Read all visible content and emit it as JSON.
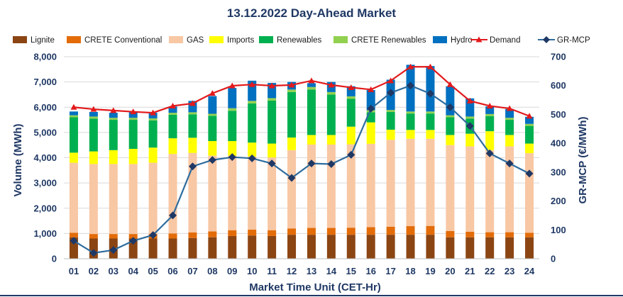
{
  "chart_data": {
    "type": "bar",
    "title": "13.12.2022  Day-Ahead Market",
    "xlabel": "Market Time Unit (CET-Hr)",
    "ylabel": "Volume (MWh)",
    "y2label": "GR-MCP (€/MWh)",
    "ylim": [
      0,
      8000
    ],
    "y2lim": [
      0,
      700
    ],
    "yticks": [
      "0",
      "1,000",
      "2,000",
      "3,000",
      "4,000",
      "5,000",
      "6,000",
      "7,000",
      "8,000"
    ],
    "y2ticks": [
      "0",
      "100",
      "200",
      "300",
      "400",
      "500",
      "600",
      "700"
    ],
    "categories": [
      "01",
      "02",
      "03",
      "04",
      "05",
      "06",
      "07",
      "08",
      "09",
      "10",
      "11",
      "12",
      "13",
      "14",
      "15",
      "16",
      "17",
      "18",
      "19",
      "20",
      "21",
      "22",
      "23",
      "24"
    ],
    "series": [
      {
        "name": "Lignite",
        "kind": "bar",
        "color": "#8b4513",
        "values": [
          850,
          800,
          800,
          800,
          800,
          800,
          820,
          850,
          900,
          920,
          900,
          950,
          950,
          950,
          950,
          950,
          950,
          950,
          950,
          850,
          850,
          850,
          850,
          850
        ]
      },
      {
        "name": "CRETE Conventional",
        "kind": "bar",
        "color": "#e36c09",
        "values": [
          180,
          180,
          180,
          180,
          180,
          200,
          220,
          230,
          230,
          230,
          230,
          250,
          270,
          270,
          280,
          300,
          320,
          340,
          350,
          250,
          220,
          200,
          200,
          180
        ]
      },
      {
        "name": "GAS",
        "kind": "bar",
        "color": "#f8c7a4",
        "values": [
          2770,
          2770,
          2770,
          2770,
          2820,
          3150,
          3150,
          3000,
          2950,
          2900,
          2880,
          3100,
          3300,
          3300,
          3300,
          3300,
          3440,
          3460,
          3450,
          3400,
          3380,
          3250,
          3400,
          3150
        ]
      },
      {
        "name": "Imports",
        "kind": "bar",
        "color": "#ffff00",
        "values": [
          400,
          500,
          550,
          600,
          600,
          620,
          600,
          580,
          580,
          550,
          550,
          500,
          380,
          380,
          700,
          850,
          400,
          350,
          350,
          400,
          500,
          750,
          450,
          380
        ]
      },
      {
        "name": "Renewables",
        "kind": "bar",
        "color": "#00b050",
        "values": [
          1400,
          1300,
          1200,
          1150,
          1080,
          930,
          930,
          1000,
          1200,
          1550,
          1700,
          1800,
          1800,
          1600,
          1100,
          400,
          700,
          650,
          650,
          700,
          600,
          600,
          600,
          700
        ]
      },
      {
        "name": "CRETE Renewables",
        "kind": "bar",
        "color": "#92d050",
        "values": [
          80,
          80,
          80,
          80,
          80,
          80,
          80,
          80,
          100,
          100,
          100,
          100,
          100,
          100,
          100,
          80,
          80,
          80,
          80,
          80,
          80,
          80,
          80,
          80
        ]
      },
      {
        "name": "Hydro",
        "kind": "bar",
        "color": "#0070c0",
        "values": [
          150,
          180,
          200,
          220,
          220,
          250,
          450,
          700,
          800,
          800,
          600,
          300,
          150,
          400,
          400,
          800,
          1200,
          1850,
          1800,
          1150,
          720,
          300,
          350,
          280
        ]
      },
      {
        "name": "Demand",
        "kind": "line",
        "color": "#e31a1c",
        "axis": "left",
        "values": [
          6000,
          5920,
          5870,
          5820,
          5780,
          6050,
          6150,
          6550,
          6850,
          6900,
          6850,
          6880,
          7050,
          6880,
          6780,
          6700,
          7050,
          7600,
          7600,
          6900,
          6250,
          6050,
          5950,
          5650
        ]
      },
      {
        "name": "GR-MCP",
        "kind": "line",
        "color": "#2e6c9e",
        "marker_color": "#1f3864",
        "axis": "right",
        "values": [
          62,
          20,
          30,
          62,
          82,
          150,
          320,
          342,
          352,
          348,
          330,
          280,
          330,
          328,
          360,
          520,
          575,
          600,
          572,
          525,
          460,
          365,
          330,
          295
        ]
      }
    ]
  }
}
